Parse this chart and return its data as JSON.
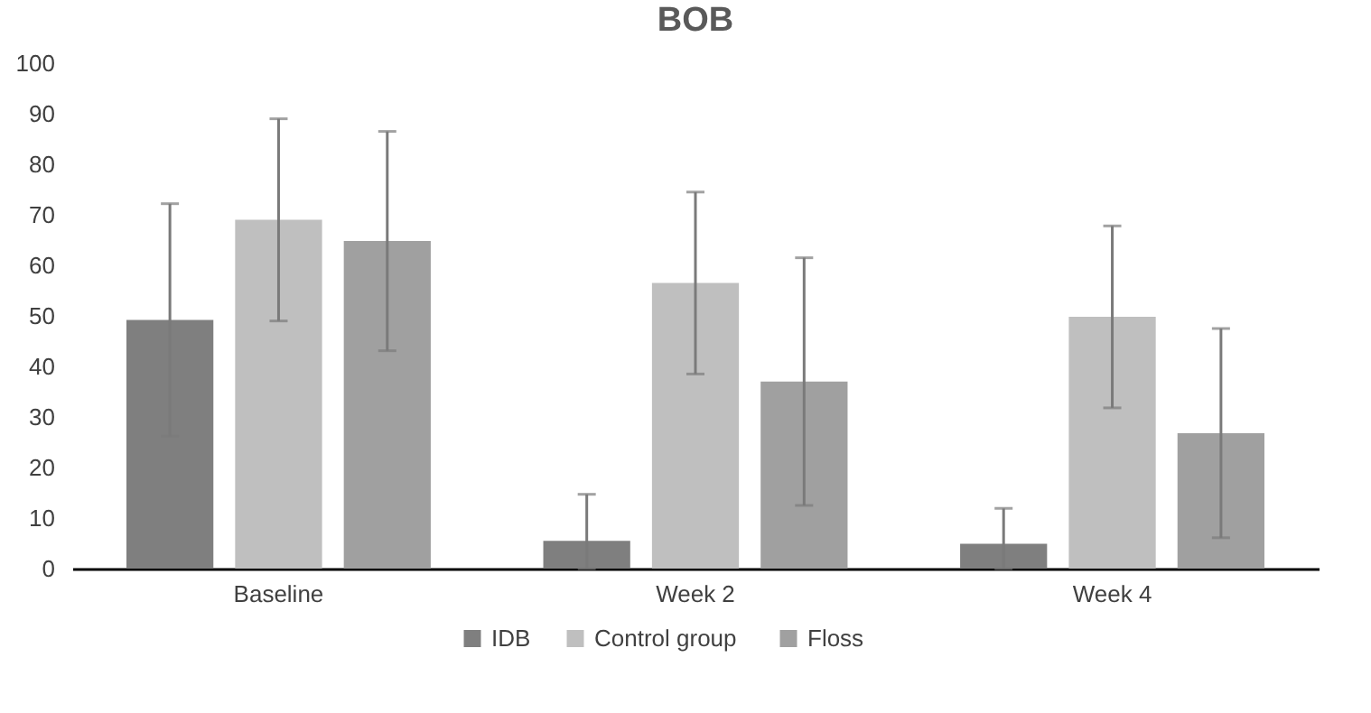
{
  "chart_data": {
    "type": "bar",
    "title": "BOB",
    "categories": [
      "Baseline",
      "Week 2",
      "Week 4"
    ],
    "series": [
      {
        "name": "IDB",
        "color": "#7f7f7f",
        "values": [
          49.2,
          5.5,
          4.9
        ],
        "errors": [
          23,
          [
            0,
            14.7
          ],
          [
            0,
            11.9
          ]
        ]
      },
      {
        "name": "Control  group",
        "color": "#bfbfbf",
        "values": [
          69,
          56.5,
          49.8
        ],
        "errors": [
          20,
          18,
          18
        ]
      },
      {
        "name": "Floss",
        "color": "#a0a0a0",
        "values": [
          64.8,
          37,
          26.8
        ],
        "errors": [
          21.7,
          24.5,
          20.7
        ]
      }
    ],
    "ylim": [
      0,
      100
    ],
    "yticks": [
      0,
      10,
      20,
      30,
      40,
      50,
      60,
      70,
      80,
      90,
      100
    ],
    "grid": false,
    "legend": "bottom"
  }
}
